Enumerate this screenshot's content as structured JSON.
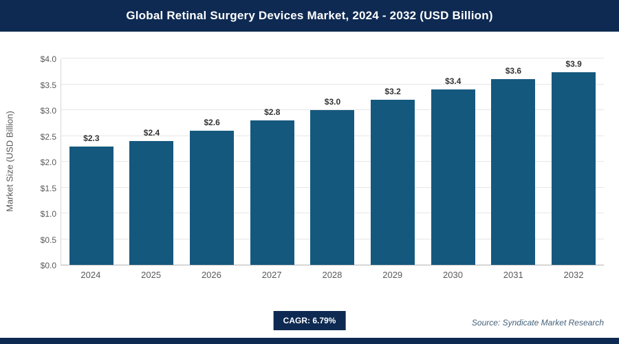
{
  "header": {
    "title": "Global Retinal Surgery Devices Market, 2024 - 2032 (USD Billion)"
  },
  "footer": {
    "cagr_label": "CAGR: 6.79%",
    "source": "Source: Syndicate Market Research"
  },
  "colors": {
    "header_bg": "#0e2a52",
    "bar": "#15587e",
    "badge_bg": "#0e2a52",
    "gridline": "#e6e6e6",
    "axis_text": "#595959"
  },
  "chart_data": {
    "type": "bar",
    "categories": [
      "2024",
      "2025",
      "2026",
      "2027",
      "2028",
      "2029",
      "2030",
      "2031",
      "2032"
    ],
    "values": [
      2.3,
      2.4,
      2.6,
      2.8,
      3.0,
      3.2,
      3.4,
      3.6,
      3.9
    ],
    "bar_labels": [
      "$2.3",
      "$2.4",
      "$2.6",
      "$2.8",
      "$3.0",
      "$3.2",
      "$3.4",
      "$3.6",
      "$3.9"
    ],
    "title": "Global Retinal Surgery Devices Market, 2024 - 2032 (USD Billion)",
    "xlabel": "",
    "ylabel": "Market Size (USD Billion)",
    "ylim": [
      0,
      4.0
    ],
    "ytick_labels": [
      "$0.0",
      "$0.5",
      "$1.0",
      "$1.5",
      "$2.0",
      "$2.5",
      "$3.0",
      "$3.5",
      "$4.0"
    ],
    "ytick_values": [
      0,
      0.5,
      1.0,
      1.5,
      2.0,
      2.5,
      3.0,
      3.5,
      4.0
    ],
    "grid": true,
    "legend": false
  }
}
